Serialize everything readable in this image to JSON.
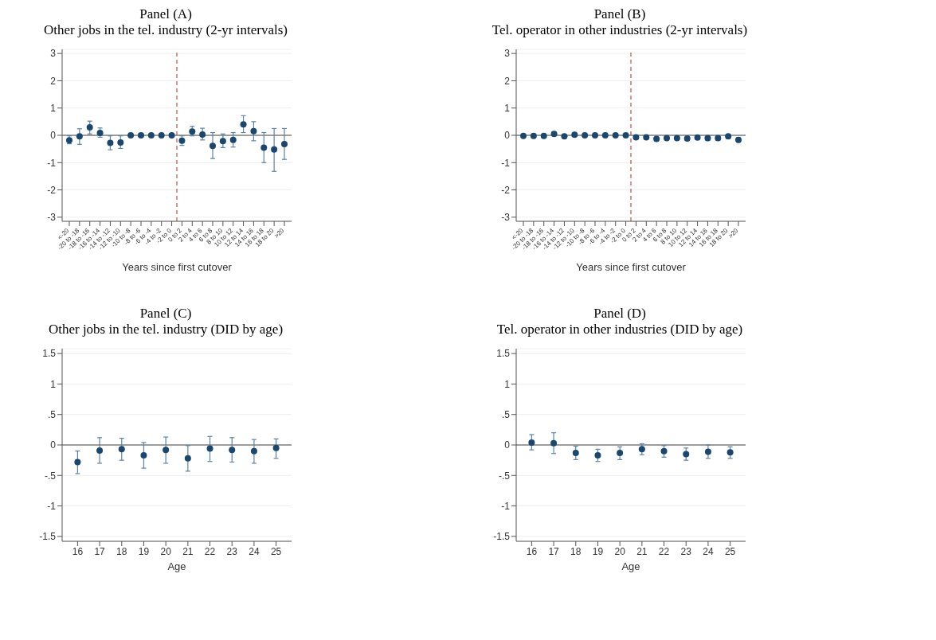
{
  "chart_data": [
    {
      "type": "scatter",
      "title": "Panel (A)",
      "subtitle": "Other jobs in the tel. industry (2-yr intervals)",
      "xlabel": "Years since first cutover",
      "categories": [
        "<-20",
        "-20 to -18",
        "-18 to -16",
        "-16 to -14",
        "-14 to -12",
        "-12 to -10",
        "-10 to -8",
        "-8 to -6",
        "-6 to -4",
        "-4 to -2",
        "-2 to 0",
        "0 to 2",
        "2 to 4",
        "4 to 6",
        "6 to 8",
        "8 to 10",
        "10 to 12",
        "12 to 14",
        "14 to 16",
        "16 to 18",
        "18 to 20",
        ">20"
      ],
      "values": [
        -0.18,
        -0.04,
        0.29,
        0.09,
        -0.28,
        -0.26,
        0,
        0,
        0,
        0,
        0,
        -0.2,
        0.14,
        0.03,
        -0.39,
        -0.21,
        -0.17,
        0.4,
        0.15,
        -0.45,
        -0.52,
        -0.32
      ],
      "errors": [
        [
          -0.31,
          -0.02
        ],
        [
          -0.33,
          0.24
        ],
        [
          0.05,
          0.52
        ],
        [
          -0.07,
          0.27
        ],
        [
          -0.53,
          -0.02
        ],
        [
          -0.48,
          -0.02
        ],
        null,
        null,
        null,
        null,
        null,
        [
          -0.37,
          -0.02
        ],
        [
          -0.02,
          0.33
        ],
        [
          -0.17,
          0.26
        ],
        [
          -0.85,
          0.1
        ],
        [
          -0.45,
          0.05
        ],
        [
          -0.43,
          0.1
        ],
        [
          0.1,
          0.72
        ],
        [
          -0.2,
          0.5
        ],
        [
          -1.0,
          0.1
        ],
        [
          -1.32,
          0.25
        ],
        [
          -0.88,
          0.25
        ]
      ],
      "color": "#1a476f",
      "ylim": [
        -3.15,
        3.15
      ],
      "yticks": [
        -3,
        -2,
        -1,
        0,
        1,
        2,
        3
      ],
      "grid": "y",
      "marker": "circle",
      "ref_lines": [
        {
          "axis": "y",
          "value": 0,
          "color": "#444444"
        },
        {
          "axis": "x",
          "value": "0 to 2",
          "color": "#c0504d",
          "line_style": "dashed"
        }
      ]
    },
    {
      "type": "scatter",
      "title": "Panel (B)",
      "subtitle": "Tel. operator in other industries (2-yr intervals)",
      "xlabel": "Years since first cutover",
      "categories": [
        "<-20",
        "-20 to -18",
        "-18 to -16",
        "-16 to -14",
        "-14 to -12",
        "-12 to -10",
        "-10 to -8",
        "-8 to -6",
        "-6 to -4",
        "-4 to -2",
        "-2 to 0",
        "0 to 2",
        "2 to 4",
        "4 to 6",
        "6 to 8",
        "8 to 10",
        "10 to 12",
        "12 to 14",
        "14 to 16",
        "16 to 18",
        "18 to 20",
        ">20"
      ],
      "values": [
        -0.02,
        -0.02,
        -0.02,
        0.05,
        -0.04,
        0.02,
        0,
        0,
        0,
        0,
        0,
        -0.07,
        -0.07,
        -0.13,
        -0.1,
        -0.1,
        -0.12,
        -0.08,
        -0.1,
        -0.1,
        -0.04,
        -0.17
      ],
      "errors": [
        0.04,
        0.04,
        0.04,
        0.06,
        0.04,
        0.04,
        null,
        null,
        null,
        null,
        null,
        0.05,
        0.05,
        0.07,
        0.06,
        0.05,
        0.06,
        0.06,
        0.09,
        0.08,
        0.07,
        0.08
      ],
      "color": "#1a476f",
      "ylim": [
        -3.15,
        3.15
      ],
      "yticks": [
        -3,
        -2,
        -1,
        0,
        1,
        2,
        3
      ],
      "grid": "y",
      "marker": "circle",
      "ref_lines": [
        {
          "axis": "y",
          "value": 0,
          "color": "#444444"
        },
        {
          "axis": "x",
          "value": "0 to 2",
          "color": "#c0504d",
          "line_style": "dashed"
        }
      ]
    },
    {
      "type": "scatter",
      "title": "Panel (C)",
      "subtitle": "Other jobs in the tel. industry (DID by age)",
      "xlabel": "Age",
      "x": [
        16,
        17,
        18,
        19,
        20,
        21,
        22,
        23,
        24,
        25
      ],
      "values": [
        -0.28,
        -0.09,
        -0.07,
        -0.17,
        -0.08,
        -0.22,
        -0.06,
        -0.08,
        -0.1,
        -0.05
      ],
      "errors": [
        [
          -0.47,
          -0.1
        ],
        [
          -0.3,
          0.12
        ],
        [
          -0.25,
          0.11
        ],
        [
          -0.38,
          0.04
        ],
        [
          -0.3,
          0.13
        ],
        [
          -0.43,
          -0.01
        ],
        [
          -0.27,
          0.14
        ],
        [
          -0.28,
          0.12
        ],
        [
          -0.3,
          0.09
        ],
        [
          -0.22,
          0.1
        ]
      ],
      "color": "#1a476f",
      "xlim": [
        15.3,
        25.7
      ],
      "xticks": [
        16,
        17,
        18,
        19,
        20,
        21,
        22,
        23,
        24,
        25
      ],
      "ylim": [
        -1.58,
        1.58
      ],
      "yticks": [
        {
          "value": -1.5,
          "label": "-1.5"
        },
        {
          "value": -1,
          "label": "-1"
        },
        {
          "value": -0.5,
          "label": "-.5"
        },
        {
          "value": 0,
          "label": "0"
        },
        {
          "value": 0.5,
          "label": ".5"
        },
        {
          "value": 1,
          "label": "1"
        },
        {
          "value": 1.5,
          "label": "1.5"
        }
      ],
      "grid": "y",
      "marker": "circle",
      "ref_lines": [
        {
          "axis": "y",
          "value": 0,
          "color": "#444444"
        }
      ]
    },
    {
      "type": "scatter",
      "title": "Panel (D)",
      "subtitle": "Tel. operator in other industries (DID by age)",
      "xlabel": "Age",
      "x": [
        16,
        17,
        18,
        19,
        20,
        21,
        22,
        23,
        24,
        25
      ],
      "values": [
        0.04,
        0.03,
        -0.13,
        -0.17,
        -0.13,
        -0.07,
        -0.1,
        -0.15,
        -0.11,
        -0.12
      ],
      "errors": [
        [
          -0.08,
          0.17
        ],
        [
          -0.14,
          0.2
        ],
        [
          -0.24,
          -0.02
        ],
        [
          -0.27,
          -0.07
        ],
        [
          -0.24,
          -0.03
        ],
        [
          -0.16,
          0.02
        ],
        [
          -0.2,
          -0.01
        ],
        [
          -0.25,
          -0.05
        ],
        [
          -0.22,
          0.0
        ],
        [
          -0.22,
          -0.03
        ]
      ],
      "color": "#1a476f",
      "xlim": [
        15.3,
        25.7
      ],
      "xticks": [
        16,
        17,
        18,
        19,
        20,
        21,
        22,
        23,
        24,
        25
      ],
      "ylim": [
        -1.58,
        1.58
      ],
      "yticks": [
        {
          "value": -1.5,
          "label": "-1.5"
        },
        {
          "value": -1,
          "label": "-1"
        },
        {
          "value": -0.5,
          "label": "-.5"
        },
        {
          "value": 0,
          "label": "0"
        },
        {
          "value": 0.5,
          "label": ".5"
        },
        {
          "value": 1,
          "label": "1"
        },
        {
          "value": 1.5,
          "label": "1.5"
        }
      ],
      "grid": "y",
      "marker": "circle",
      "ref_lines": [
        {
          "axis": "y",
          "value": 0,
          "color": "#444444"
        }
      ]
    }
  ]
}
